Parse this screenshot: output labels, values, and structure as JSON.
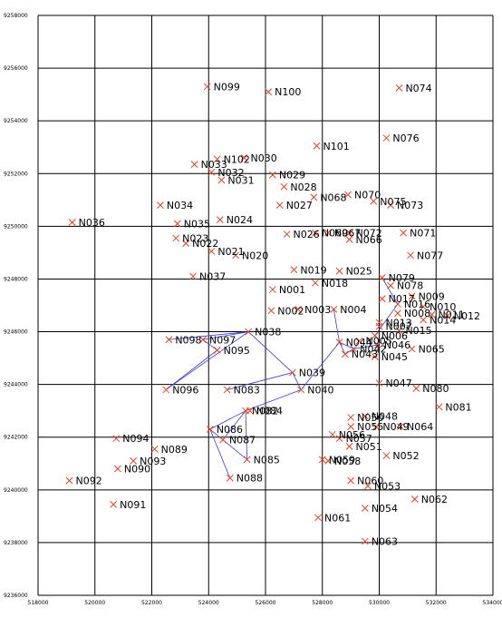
{
  "chart_data": {
    "type": "scatter",
    "title": "",
    "xlabel": "",
    "ylabel": "",
    "xlim": [
      518000,
      534000
    ],
    "ylim": [
      9236000,
      9258000
    ],
    "xticks": [
      518000,
      520000,
      522000,
      524000,
      526000,
      528000,
      530000,
      532000,
      534000
    ],
    "yticks": [
      9236000,
      9238000,
      9240000,
      9242000,
      9244000,
      9246000,
      9248000,
      9250000,
      9252000,
      9254000,
      9256000,
      9258000
    ],
    "xtick_labels": [
      "518000",
      "520000",
      "522000",
      "524000",
      "526000",
      "528000",
      "530000",
      "532000",
      "534000"
    ],
    "ytick_labels": [
      "9236000",
      "9238000",
      "9240000",
      "9242000",
      "9244000",
      "9246000",
      "9248000",
      "9250000",
      "9252000",
      "9254000",
      "9256000",
      "9258000"
    ],
    "grid": true,
    "marker": "x",
    "marker_color": "#e8411e",
    "line_color": "#3b3bd6",
    "points": [
      {
        "name": "N099",
        "x": 523950,
        "y": 9255300
      },
      {
        "name": "N100",
        "x": 526100,
        "y": 9255100
      },
      {
        "name": "N074",
        "x": 530700,
        "y": 9255250
      },
      {
        "name": "N076",
        "x": 530250,
        "y": 9253350
      },
      {
        "name": "N101",
        "x": 527800,
        "y": 9253050
      },
      {
        "name": "N102",
        "x": 524300,
        "y": 9252550
      },
      {
        "name": "N030",
        "x": 525250,
        "y": 9252600
      },
      {
        "name": "N033",
        "x": 523500,
        "y": 9252350
      },
      {
        "name": "N032",
        "x": 524100,
        "y": 9252050
      },
      {
        "name": "N031",
        "x": 524450,
        "y": 9251750
      },
      {
        "name": "N029",
        "x": 526250,
        "y": 9251950
      },
      {
        "name": "N028",
        "x": 526650,
        "y": 9251500
      },
      {
        "name": "N068",
        "x": 527700,
        "y": 9251100
      },
      {
        "name": "N070",
        "x": 528900,
        "y": 9251200
      },
      {
        "name": "N075",
        "x": 529800,
        "y": 9250950
      },
      {
        "name": "N073",
        "x": 530400,
        "y": 9250800
      },
      {
        "name": "N034",
        "x": 522300,
        "y": 9250800
      },
      {
        "name": "N027",
        "x": 526500,
        "y": 9250800
      },
      {
        "name": "N036",
        "x": 519200,
        "y": 9250150
      },
      {
        "name": "N035",
        "x": 522900,
        "y": 9250100
      },
      {
        "name": "N024",
        "x": 524400,
        "y": 9250250
      },
      {
        "name": "N026",
        "x": 526750,
        "y": 9249700
      },
      {
        "name": "N069",
        "x": 527750,
        "y": 9249750
      },
      {
        "name": "N067",
        "x": 528200,
        "y": 9249750
      },
      {
        "name": "N072",
        "x": 528950,
        "y": 9249750
      },
      {
        "name": "N066",
        "x": 528950,
        "y": 9249500
      },
      {
        "name": "N071",
        "x": 530850,
        "y": 9249750
      },
      {
        "name": "N023",
        "x": 522850,
        "y": 9249550
      },
      {
        "name": "N022",
        "x": 523200,
        "y": 9249350
      },
      {
        "name": "N021",
        "x": 524100,
        "y": 9249050
      },
      {
        "name": "N020",
        "x": 524950,
        "y": 9248900
      },
      {
        "name": "N077",
        "x": 531100,
        "y": 9248900
      },
      {
        "name": "N037",
        "x": 523450,
        "y": 9248100
      },
      {
        "name": "N019",
        "x": 527000,
        "y": 9248350
      },
      {
        "name": "N025",
        "x": 528600,
        "y": 9248300
      },
      {
        "name": "N079",
        "x": 530100,
        "y": 9248050
      },
      {
        "name": "N018",
        "x": 527750,
        "y": 9247850
      },
      {
        "name": "N078",
        "x": 530400,
        "y": 9247750
      },
      {
        "name": "N001",
        "x": 526250,
        "y": 9247600
      },
      {
        "name": "N009",
        "x": 531150,
        "y": 9247350
      },
      {
        "name": "N017",
        "x": 530100,
        "y": 9247250
      },
      {
        "name": "N016",
        "x": 530650,
        "y": 9247050
      },
      {
        "name": "N010",
        "x": 531550,
        "y": 9246950
      },
      {
        "name": "N008",
        "x": 530650,
        "y": 9246700
      },
      {
        "name": "N011",
        "x": 531850,
        "y": 9246650
      },
      {
        "name": "N012",
        "x": 532400,
        "y": 9246600
      },
      {
        "name": "N014",
        "x": 531550,
        "y": 9246450
      },
      {
        "name": "N002",
        "x": 526200,
        "y": 9246800
      },
      {
        "name": "N003",
        "x": 527150,
        "y": 9246850
      },
      {
        "name": "N004",
        "x": 528400,
        "y": 9246850
      },
      {
        "name": "N013",
        "x": 530000,
        "y": 9246350
      },
      {
        "name": "N007",
        "x": 530000,
        "y": 9246200
      },
      {
        "name": "N015",
        "x": 530700,
        "y": 9246050
      },
      {
        "name": "N006",
        "x": 529850,
        "y": 9245850
      },
      {
        "name": "N038",
        "x": 525400,
        "y": 9246000
      },
      {
        "name": "N098",
        "x": 522600,
        "y": 9245700
      },
      {
        "name": "N097",
        "x": 523800,
        "y": 9245700
      },
      {
        "name": "N044",
        "x": 528600,
        "y": 9245600
      },
      {
        "name": "N005",
        "x": 529300,
        "y": 9245650
      },
      {
        "name": "N046",
        "x": 529950,
        "y": 9245500
      },
      {
        "name": "N042",
        "x": 529100,
        "y": 9245350
      },
      {
        "name": "N095",
        "x": 524300,
        "y": 9245300
      },
      {
        "name": "N065",
        "x": 531150,
        "y": 9245350
      },
      {
        "name": "N043",
        "x": 528800,
        "y": 9245150
      },
      {
        "name": "N045",
        "x": 529850,
        "y": 9245050
      },
      {
        "name": "N039",
        "x": 526950,
        "y": 9244450
      },
      {
        "name": "N047",
        "x": 530000,
        "y": 9244050
      },
      {
        "name": "N080",
        "x": 531300,
        "y": 9243850
      },
      {
        "name": "N096",
        "x": 522500,
        "y": 9243800
      },
      {
        "name": "N083",
        "x": 524650,
        "y": 9243800
      },
      {
        "name": "N040",
        "x": 527250,
        "y": 9243800
      },
      {
        "name": "N081",
        "x": 532100,
        "y": 9243150
      },
      {
        "name": "N082",
        "x": 525300,
        "y": 9243000
      },
      {
        "name": "N084",
        "x": 525450,
        "y": 9243000
      },
      {
        "name": "N048",
        "x": 529500,
        "y": 9242800
      },
      {
        "name": "N050",
        "x": 529000,
        "y": 9242750
      },
      {
        "name": "N055",
        "x": 529000,
        "y": 9242400
      },
      {
        "name": "N049",
        "x": 529900,
        "y": 9242400
      },
      {
        "name": "N064",
        "x": 530750,
        "y": 9242400
      },
      {
        "name": "N086",
        "x": 524050,
        "y": 9242300
      },
      {
        "name": "N056",
        "x": 528350,
        "y": 9242100
      },
      {
        "name": "N057",
        "x": 528600,
        "y": 9241950
      },
      {
        "name": "N094",
        "x": 520750,
        "y": 9241950
      },
      {
        "name": "N087",
        "x": 524500,
        "y": 9241900
      },
      {
        "name": "N051",
        "x": 528950,
        "y": 9241650
      },
      {
        "name": "N089",
        "x": 522100,
        "y": 9241550
      },
      {
        "name": "N052",
        "x": 530250,
        "y": 9241300
      },
      {
        "name": "N093",
        "x": 521350,
        "y": 9241100
      },
      {
        "name": "N085",
        "x": 525350,
        "y": 9241150
      },
      {
        "name": "N059",
        "x": 528000,
        "y": 9241150
      },
      {
        "name": "N058",
        "x": 528200,
        "y": 9241100
      },
      {
        "name": "N090",
        "x": 520800,
        "y": 9240800
      },
      {
        "name": "N088",
        "x": 524750,
        "y": 9240450
      },
      {
        "name": "N092",
        "x": 519100,
        "y": 9240350
      },
      {
        "name": "N060",
        "x": 529000,
        "y": 9240350
      },
      {
        "name": "N053",
        "x": 529600,
        "y": 9240150
      },
      {
        "name": "N062",
        "x": 531250,
        "y": 9239650
      },
      {
        "name": "N091",
        "x": 520650,
        "y": 9239450
      },
      {
        "name": "N054",
        "x": 529500,
        "y": 9239300
      },
      {
        "name": "N061",
        "x": 527850,
        "y": 9238950
      },
      {
        "name": "N063",
        "x": 529500,
        "y": 9238050
      }
    ],
    "connections": [
      [
        "N096",
        "N038"
      ],
      [
        "N038",
        "N039"
      ],
      [
        "N039",
        "N083"
      ],
      [
        "N039",
        "N040"
      ],
      [
        "N040",
        "N044"
      ],
      [
        "N044",
        "N042"
      ],
      [
        "N044",
        "N043"
      ],
      [
        "N043",
        "N042"
      ],
      [
        "N004",
        "N044"
      ],
      [
        "N038",
        "N097"
      ],
      [
        "N097",
        "N095"
      ],
      [
        "N095",
        "N096"
      ],
      [
        "N098",
        "N038"
      ],
      [
        "N040",
        "N082"
      ],
      [
        "N082",
        "N086"
      ],
      [
        "N086",
        "N088"
      ],
      [
        "N086",
        "N087"
      ],
      [
        "N087",
        "N085"
      ],
      [
        "N082",
        "N087"
      ],
      [
        "N082",
        "N085"
      ],
      [
        "N006",
        "N016"
      ],
      [
        "N016",
        "N079"
      ],
      [
        "N046",
        "N042"
      ]
    ]
  }
}
